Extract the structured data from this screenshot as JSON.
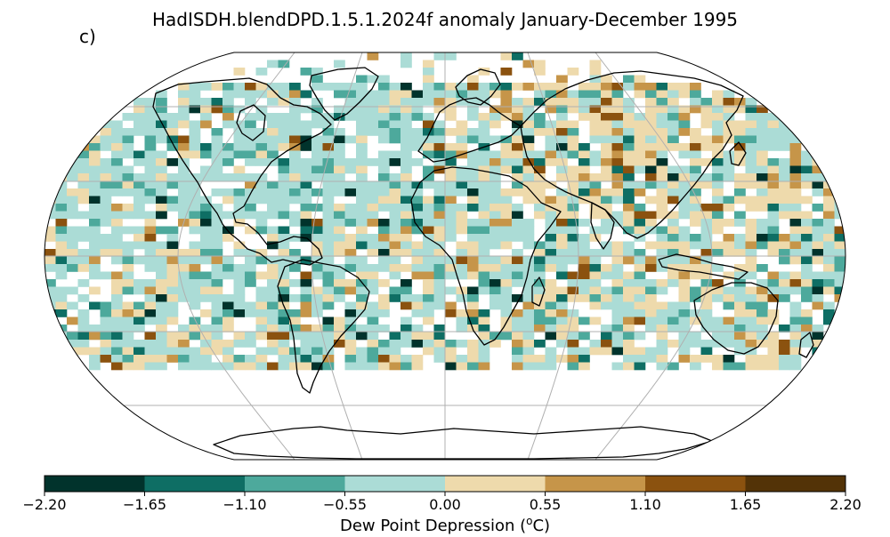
{
  "title": "HadISDH.blendDPD.1.5.1.2024f anomaly January-December 1995",
  "panel_label": "c)",
  "colorbar": {
    "label_main": "Dew Point Depression (",
    "label_sup": "o",
    "label_end": "C)",
    "ticks": [
      "−2.20",
      "−1.65",
      "−1.10",
      "−0.55",
      "0.00",
      "0.55",
      "1.10",
      "1.65",
      "2.20"
    ],
    "bins": [
      {
        "range": [
          -2.2,
          -1.65
        ],
        "color": "#01332c"
      },
      {
        "range": [
          -1.65,
          -1.1
        ],
        "color": "#0e6e64"
      },
      {
        "range": [
          -1.1,
          -0.55
        ],
        "color": "#4da99c"
      },
      {
        "range": [
          -0.55,
          0.0
        ],
        "color": "#abdcd6"
      },
      {
        "range": [
          0.0,
          0.55
        ],
        "color": "#eedaac"
      },
      {
        "range": [
          0.55,
          1.1
        ],
        "color": "#c69549"
      },
      {
        "range": [
          1.1,
          1.65
        ],
        "color": "#8b520f"
      },
      {
        "range": [
          1.65,
          2.2
        ],
        "color": "#533307"
      }
    ]
  },
  "map": {
    "projection": "Robinson",
    "graticule": true,
    "grid_resolution_degrees": 5
  }
}
